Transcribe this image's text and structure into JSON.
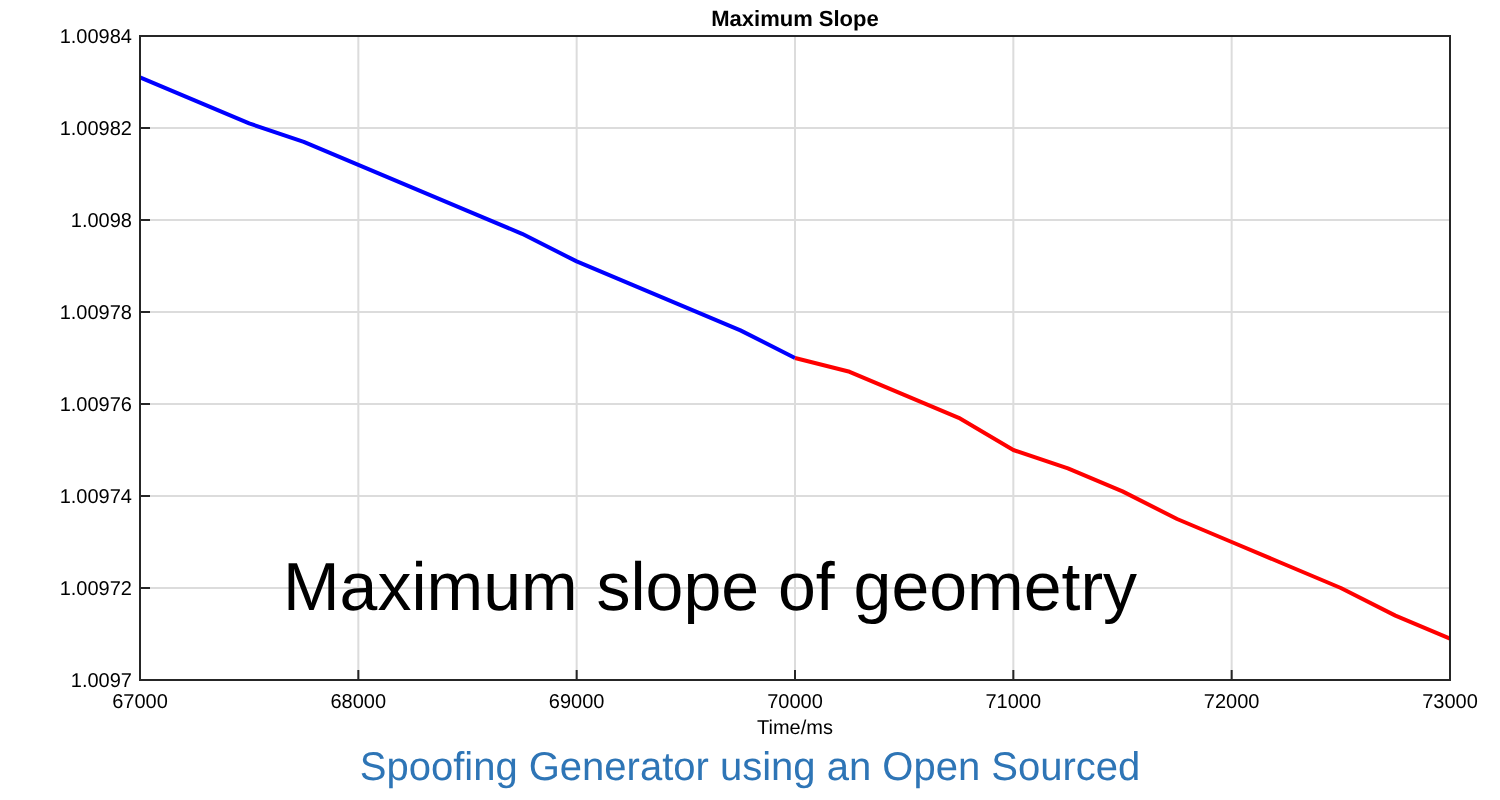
{
  "chart_data": {
    "type": "line",
    "title": "Maximum Slope",
    "xlabel": "Time/ms",
    "xlim": [
      67000,
      73000
    ],
    "xticks": [
      67000,
      68000,
      69000,
      70000,
      71000,
      72000,
      73000
    ],
    "ylim": [
      1.0097,
      1.00984
    ],
    "yticks": [
      1.0097,
      1.00972,
      1.00974,
      1.00976,
      1.00978,
      1.0098,
      1.00982,
      1.00984
    ],
    "grid": true,
    "series": [
      {
        "color": "#0000ff",
        "x": [
          67000,
          67250,
          67500,
          67750,
          68000,
          68250,
          68500,
          68750,
          69000,
          69250,
          69500,
          69750,
          70000
        ],
        "values": [
          1.009831,
          1.009826,
          1.009821,
          1.009817,
          1.009812,
          1.009807,
          1.009802,
          1.009797,
          1.009791,
          1.009786,
          1.009781,
          1.009776,
          1.00977
        ]
      },
      {
        "color": "#ff0000",
        "x": [
          70000,
          70250,
          70500,
          70750,
          71000,
          71250,
          71500,
          71750,
          72000,
          72250,
          72500,
          72750,
          73000
        ],
        "values": [
          1.00977,
          1.009767,
          1.009762,
          1.009757,
          1.00975,
          1.009746,
          1.009741,
          1.009735,
          1.00973,
          1.009725,
          1.00972,
          1.009714,
          1.009709
        ]
      }
    ],
    "annotations": [
      "Maximum slope of geometry",
      "Spoofing Generator using an Open Sourced"
    ]
  }
}
